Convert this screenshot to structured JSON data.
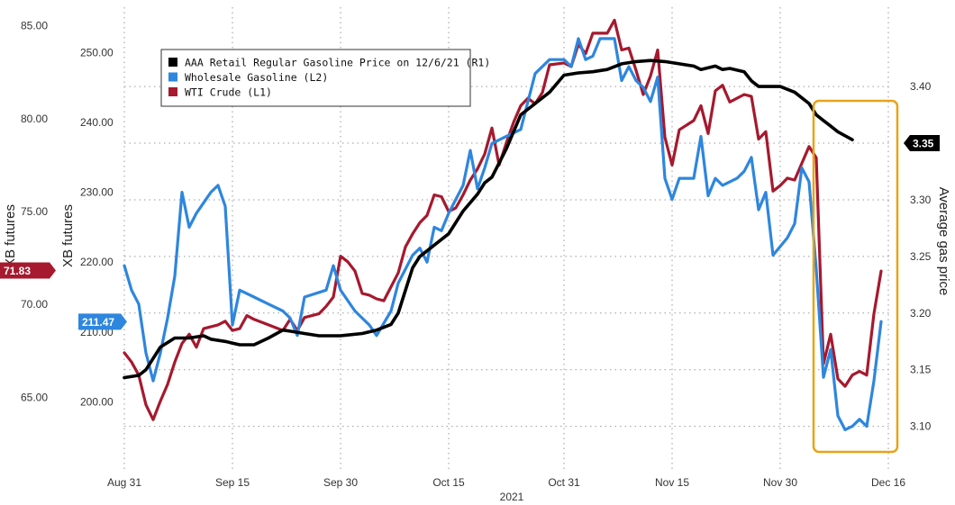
{
  "chart_data": {
    "type": "line",
    "x_axis": {
      "ticks": [
        "Aug 31",
        "Sep 15",
        "Sep 30",
        "Oct 15",
        "Oct 31",
        "Nov 15",
        "Nov 30",
        "Dec 16"
      ],
      "label": "2021"
    },
    "axes": {
      "L1": {
        "label": "XB futures",
        "range": [
          61.0,
          86.0
        ],
        "ticks": [
          "65.00",
          "70.00",
          "75.00",
          "80.00",
          "85.00"
        ]
      },
      "L2": {
        "label": "XB futures",
        "range": [
          190.0,
          256.5
        ],
        "ticks": [
          "200.00",
          "210.00",
          "220.00",
          "230.00",
          "240.00",
          "250.00"
        ]
      },
      "R1": {
        "label": "Average gas price",
        "range": [
          3.06,
          3.47
        ],
        "ticks": [
          "3.10",
          "3.15",
          "3.20",
          "3.25",
          "3.30",
          "3.35",
          "3.40"
        ]
      }
    },
    "grid": true,
    "legend_position": "top-left",
    "last_value_tags": [
      {
        "series": "WTI Crude (L1)",
        "value": "71.83",
        "color": "#a6192e"
      },
      {
        "series": "Wholesale Gasoline (L2)",
        "value": "211.47",
        "color": "#2e86de"
      },
      {
        "series": "AAA Retail Regular Gasoline Price on 12/6/21 (R1)",
        "value": "3.35",
        "color": "#000000"
      }
    ],
    "series": [
      {
        "name": "AAA Retail Regular Gasoline Price on 12/6/21 (R1)",
        "axis": "R1",
        "color": "#000000",
        "points": [
          [
            0,
            3.143
          ],
          [
            2,
            3.145
          ],
          [
            3,
            3.15
          ],
          [
            5,
            3.17
          ],
          [
            7,
            3.178
          ],
          [
            9,
            3.178
          ],
          [
            11,
            3.18
          ],
          [
            12,
            3.177
          ],
          [
            14,
            3.175
          ],
          [
            16,
            3.172
          ],
          [
            18,
            3.172
          ],
          [
            20,
            3.178
          ],
          [
            22,
            3.185
          ],
          [
            23,
            3.184
          ],
          [
            25,
            3.182
          ],
          [
            27,
            3.18
          ],
          [
            30,
            3.18
          ],
          [
            33,
            3.182
          ],
          [
            35,
            3.185
          ],
          [
            37,
            3.19
          ],
          [
            38,
            3.2
          ],
          [
            39,
            3.22
          ],
          [
            40,
            3.24
          ],
          [
            41,
            3.25
          ],
          [
            43,
            3.26
          ],
          [
            45,
            3.27
          ],
          [
            47,
            3.29
          ],
          [
            49,
            3.305
          ],
          [
            50,
            3.315
          ],
          [
            51,
            3.32
          ],
          [
            53,
            3.345
          ],
          [
            55,
            3.375
          ],
          [
            57,
            3.385
          ],
          [
            59,
            3.395
          ],
          [
            61,
            3.41
          ],
          [
            63,
            3.412
          ],
          [
            65,
            3.413
          ],
          [
            67,
            3.415
          ],
          [
            69,
            3.42
          ],
          [
            71,
            3.422
          ],
          [
            73,
            3.423
          ],
          [
            75,
            3.422
          ],
          [
            77,
            3.42
          ],
          [
            79,
            3.418
          ],
          [
            80,
            3.415
          ],
          [
            82,
            3.418
          ],
          [
            83,
            3.415
          ],
          [
            84,
            3.416
          ],
          [
            86,
            3.413
          ],
          [
            87,
            3.405
          ],
          [
            88,
            3.4
          ],
          [
            89,
            3.4
          ],
          [
            91,
            3.4
          ],
          [
            93,
            3.395
          ],
          [
            95,
            3.385
          ],
          [
            96,
            3.375
          ],
          [
            97,
            3.37
          ],
          [
            98,
            3.365
          ],
          [
            99,
            3.36
          ],
          [
            101,
            3.353
          ]
        ]
      },
      {
        "name": "Wholesale Gasoline (L2)",
        "axis": "L2",
        "color": "#2e86de",
        "points": [
          [
            0,
            219.5
          ],
          [
            1,
            216
          ],
          [
            2,
            214
          ],
          [
            3,
            207
          ],
          [
            4,
            203
          ],
          [
            5,
            207
          ],
          [
            6,
            212
          ],
          [
            7,
            218
          ],
          [
            8,
            230
          ],
          [
            9,
            225
          ],
          [
            10,
            227
          ],
          [
            11,
            228.5
          ],
          [
            12,
            230
          ],
          [
            13,
            231
          ],
          [
            14,
            228
          ],
          [
            15,
            211
          ],
          [
            16,
            216
          ],
          [
            18,
            215
          ],
          [
            20,
            214
          ],
          [
            22,
            213
          ],
          [
            23,
            212
          ],
          [
            24,
            209.5
          ],
          [
            25,
            215
          ],
          [
            28,
            216
          ],
          [
            29,
            219.5
          ],
          [
            30,
            216
          ],
          [
            32,
            213
          ],
          [
            34,
            211
          ],
          [
            35,
            209.5
          ],
          [
            37,
            213
          ],
          [
            38,
            217
          ],
          [
            39,
            219
          ],
          [
            40,
            221
          ],
          [
            41,
            222
          ],
          [
            42,
            220
          ],
          [
            43,
            225
          ],
          [
            44,
            224.5
          ],
          [
            45,
            227
          ],
          [
            46,
            229
          ],
          [
            47,
            231
          ],
          [
            48,
            236
          ],
          [
            49,
            230.5
          ],
          [
            50,
            233.5
          ],
          [
            51,
            237
          ],
          [
            53,
            238
          ],
          [
            55,
            239
          ],
          [
            57,
            247
          ],
          [
            59,
            249
          ],
          [
            61,
            249
          ],
          [
            62,
            248
          ],
          [
            63,
            252
          ],
          [
            64,
            249
          ],
          [
            65,
            249.5
          ],
          [
            66,
            252
          ],
          [
            68,
            252
          ],
          [
            69,
            246
          ],
          [
            70,
            248
          ],
          [
            71,
            246
          ],
          [
            72,
            245
          ],
          [
            73,
            243
          ],
          [
            74,
            246.5
          ],
          [
            75,
            232
          ],
          [
            76,
            229
          ],
          [
            77,
            232
          ],
          [
            79,
            232
          ],
          [
            80,
            238
          ],
          [
            81,
            229.5
          ],
          [
            82,
            232
          ],
          [
            83,
            231
          ],
          [
            85,
            232
          ],
          [
            86,
            233
          ],
          [
            87,
            235
          ],
          [
            88,
            227.5
          ],
          [
            89,
            230
          ],
          [
            90,
            221
          ],
          [
            92,
            223.5
          ],
          [
            93,
            225.5
          ],
          [
            94,
            233.5
          ],
          [
            95,
            231.5
          ],
          [
            96,
            219
          ],
          [
            97,
            203.5
          ],
          [
            98,
            207.5
          ],
          [
            99,
            198
          ],
          [
            100,
            196
          ],
          [
            101,
            196.5
          ],
          [
            102,
            197.5
          ],
          [
            103,
            196.5
          ],
          [
            104,
            203
          ],
          [
            105,
            211.5
          ]
        ]
      },
      {
        "name": "WTI Crude (L1)",
        "axis": "L1",
        "color": "#a6192e",
        "points": [
          [
            0,
            67.4
          ],
          [
            1,
            66.9
          ],
          [
            2,
            66.2
          ],
          [
            3,
            64.6
          ],
          [
            4,
            63.8
          ],
          [
            5,
            64.8
          ],
          [
            6,
            65.7
          ],
          [
            7,
            66.9
          ],
          [
            8,
            67.9
          ],
          [
            9,
            68.4
          ],
          [
            10,
            67.7
          ],
          [
            11,
            68.7
          ],
          [
            13,
            68.9
          ],
          [
            14,
            69.1
          ],
          [
            15,
            68.6
          ],
          [
            16,
            68.7
          ],
          [
            17,
            69.4
          ],
          [
            18,
            69.2
          ],
          [
            20,
            68.9
          ],
          [
            22,
            68.6
          ],
          [
            23,
            69.2
          ],
          [
            24,
            68.6
          ],
          [
            25,
            69.3
          ],
          [
            27,
            69.5
          ],
          [
            28,
            69.9
          ],
          [
            29,
            70.4
          ],
          [
            30,
            72.6
          ],
          [
            31,
            72.3
          ],
          [
            32,
            71.8
          ],
          [
            33,
            70.6
          ],
          [
            34,
            70.5
          ],
          [
            35,
            70.3
          ],
          [
            36,
            70.2
          ],
          [
            38,
            71.7
          ],
          [
            39,
            73.1
          ],
          [
            40,
            73.8
          ],
          [
            41,
            74.4
          ],
          [
            42,
            74.8
          ],
          [
            43,
            75.9
          ],
          [
            44,
            75.8
          ],
          [
            45,
            75.0
          ],
          [
            46,
            75.2
          ],
          [
            47,
            75.9
          ],
          [
            48,
            76.7
          ],
          [
            49,
            77.3
          ],
          [
            50,
            78.1
          ],
          [
            51,
            79.5
          ],
          [
            52,
            77.5
          ],
          [
            53,
            78.7
          ],
          [
            54,
            79.8
          ],
          [
            55,
            80.7
          ],
          [
            56,
            81.1
          ],
          [
            57,
            80.8
          ],
          [
            58,
            81.4
          ],
          [
            59,
            82.9
          ],
          [
            61,
            83.0
          ],
          [
            62,
            82.8
          ],
          [
            63,
            84.0
          ],
          [
            64,
            83.5
          ],
          [
            65,
            84.6
          ],
          [
            67,
            84.6
          ],
          [
            68,
            85.3
          ],
          [
            69,
            83.7
          ],
          [
            70,
            83.8
          ],
          [
            71,
            82.6
          ],
          [
            72,
            81.3
          ],
          [
            73,
            82.3
          ],
          [
            74,
            83.7
          ],
          [
            75,
            79.0
          ],
          [
            76,
            77.5
          ],
          [
            77,
            79.4
          ],
          [
            79,
            79.9
          ],
          [
            80,
            80.7
          ],
          [
            81,
            79.2
          ],
          [
            82,
            81.5
          ],
          [
            83,
            81.8
          ],
          [
            84,
            80.9
          ],
          [
            86,
            81.3
          ],
          [
            87,
            81.2
          ],
          [
            88,
            78.9
          ],
          [
            89,
            79.3
          ],
          [
            90,
            76.1
          ],
          [
            91,
            76.4
          ],
          [
            92,
            76.8
          ],
          [
            93,
            76.7
          ],
          [
            94,
            77.6
          ],
          [
            95,
            78.5
          ],
          [
            96,
            77.9
          ],
          [
            97,
            66.8
          ],
          [
            98,
            68.4
          ],
          [
            99,
            66.0
          ],
          [
            100,
            65.6
          ],
          [
            101,
            66.2
          ],
          [
            102,
            66.4
          ],
          [
            103,
            66.2
          ],
          [
            104,
            69.5
          ],
          [
            105,
            71.8
          ]
        ]
      }
    ],
    "highlight_box": {
      "color": "#e8a317"
    }
  }
}
